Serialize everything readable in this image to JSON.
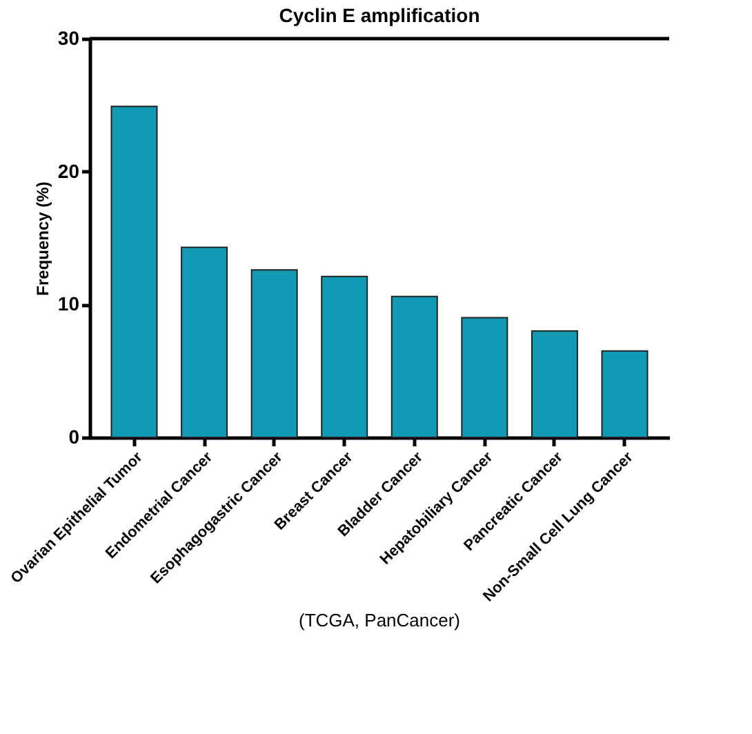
{
  "chart_data": {
    "type": "bar",
    "title": "Cyclin E amplification",
    "ylabel": "Frequency (%)",
    "categories": [
      "Ovarian Epithelial Tumor",
      "Endometrial Cancer",
      "Esophagogastric Cancer",
      "Breast Cancer",
      "Bladder Cancer",
      "Hepatobiliary Cancer",
      "Pancreatic Cancer",
      "Non-Small Cell Lung Cancer"
    ],
    "values": [
      24.9,
      14.3,
      12.6,
      12.1,
      10.6,
      9.0,
      8.0,
      6.5
    ],
    "color": "#129ab5",
    "ylim": [
      0,
      30
    ],
    "yticks": [
      0,
      10,
      20,
      30
    ],
    "grid": false,
    "annotations": [
      "(TCGA, PanCancer)"
    ]
  }
}
